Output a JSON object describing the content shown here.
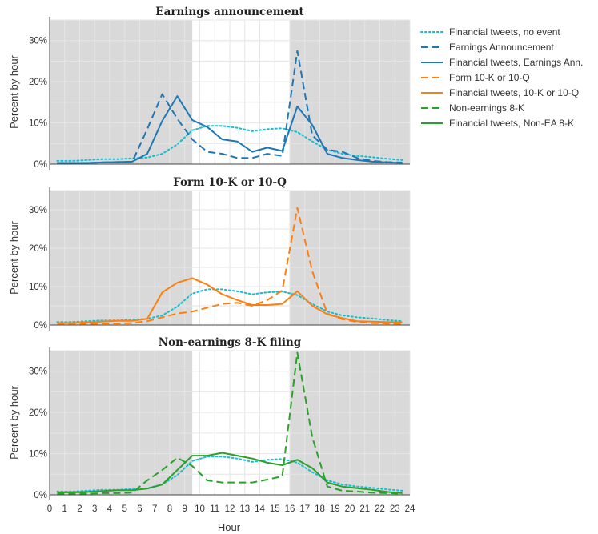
{
  "colors": {
    "teal": "#17becf",
    "blue": "#1f77b4",
    "orange": "#ff7f0e",
    "green": "#2ca02c",
    "shade": "#d9d9d9",
    "grid": "#e6e6e6"
  },
  "legend": [
    {
      "label": "Financial tweets, no event",
      "color": "#17becf",
      "style": "dotted"
    },
    {
      "label": "Earnings Announcement",
      "color": "#1f77b4",
      "style": "dashed"
    },
    {
      "label": "Financial tweets, Earnings Ann.",
      "color": "#1f77b4",
      "style": "solid"
    },
    {
      "label": "Form 10-K or 10-Q",
      "color": "#ff7f0e",
      "style": "dashed"
    },
    {
      "label": "Financial tweets, 10-K or 10-Q",
      "color": "#ff7f0e",
      "style": "solid"
    },
    {
      "label": "Non-earnings 8-K",
      "color": "#2ca02c",
      "style": "dashed"
    },
    {
      "label": "Financial tweets, Non-EA 8-K",
      "color": "#2ca02c",
      "style": "solid"
    }
  ],
  "chart_data": [
    {
      "type": "line",
      "title": "Earnings announcement",
      "ylabel": "Percent by hour",
      "xlabel": "",
      "xlim": [
        0,
        24
      ],
      "ylim": [
        0,
        35
      ],
      "yticks": [
        "0%",
        "10%",
        "20%",
        "30%"
      ],
      "closed_hours": [
        [
          0,
          9.5
        ],
        [
          16,
          24
        ]
      ],
      "grid": true,
      "series": [
        {
          "name": "Financial tweets, no event",
          "color": "#17becf",
          "style": "dotted",
          "x": [
            0.5,
            1.5,
            2.5,
            3.5,
            4.5,
            5.5,
            6.5,
            7.5,
            8.5,
            9.5,
            10.5,
            11.5,
            12.5,
            13.5,
            14.5,
            15.5,
            16.5,
            17.5,
            18.5,
            19.5,
            20.5,
            21.5,
            22.5,
            23.5
          ],
          "y": [
            0.8,
            0.8,
            1.0,
            1.2,
            1.2,
            1.4,
            1.6,
            2.5,
            4.8,
            8.2,
            9.3,
            9.3,
            8.8,
            8.0,
            8.5,
            8.7,
            7.8,
            5.5,
            3.5,
            2.5,
            2.0,
            1.7,
            1.3,
            1.0
          ]
        },
        {
          "name": "Earnings Announcement",
          "color": "#1f77b4",
          "style": "dashed",
          "x": [
            0.5,
            1.5,
            2.5,
            3.5,
            4.5,
            5.5,
            6.5,
            7.5,
            8.5,
            9.5,
            10.5,
            11.5,
            12.5,
            13.5,
            14.5,
            15.5,
            16.5,
            17.5,
            18.5,
            19.5,
            20.5,
            21.5,
            22.5,
            23.5
          ],
          "y": [
            0.3,
            0.3,
            0.3,
            0.4,
            0.5,
            0.5,
            8.5,
            17.0,
            11.0,
            6.0,
            3.0,
            2.5,
            1.5,
            1.5,
            2.5,
            2.0,
            27.5,
            7.0,
            3.5,
            3.0,
            1.5,
            0.8,
            0.5,
            0.4
          ]
        },
        {
          "name": "Financial tweets, Earnings Ann.",
          "color": "#1f77b4",
          "style": "solid",
          "x": [
            0.5,
            1.5,
            2.5,
            3.5,
            4.5,
            5.5,
            6.5,
            7.5,
            8.5,
            9.5,
            10.5,
            11.5,
            12.5,
            13.5,
            14.5,
            15.5,
            16.5,
            17.5,
            18.5,
            19.5,
            20.5,
            21.5,
            22.5,
            23.5
          ],
          "y": [
            0.3,
            0.3,
            0.3,
            0.4,
            0.5,
            0.6,
            2.5,
            10.5,
            16.5,
            10.7,
            9.0,
            6.0,
            5.5,
            3.0,
            4.0,
            3.2,
            14.0,
            9.5,
            2.5,
            1.5,
            1.0,
            0.6,
            0.4,
            0.3
          ]
        }
      ]
    },
    {
      "type": "line",
      "title": "Form 10-K or 10-Q",
      "ylabel": "Percent by hour",
      "xlabel": "",
      "xlim": [
        0,
        24
      ],
      "ylim": [
        0,
        35
      ],
      "yticks": [
        "0%",
        "10%",
        "20%",
        "30%"
      ],
      "closed_hours": [
        [
          0,
          9.5
        ],
        [
          16,
          24
        ]
      ],
      "grid": true,
      "series": [
        {
          "name": "Financial tweets, no event",
          "color": "#17becf",
          "style": "dotted",
          "x": [
            0.5,
            1.5,
            2.5,
            3.5,
            4.5,
            5.5,
            6.5,
            7.5,
            8.5,
            9.5,
            10.5,
            11.5,
            12.5,
            13.5,
            14.5,
            15.5,
            16.5,
            17.5,
            18.5,
            19.5,
            20.5,
            21.5,
            22.5,
            23.5
          ],
          "y": [
            0.8,
            0.8,
            1.0,
            1.2,
            1.2,
            1.4,
            1.6,
            2.5,
            4.8,
            8.2,
            9.3,
            9.3,
            8.8,
            8.0,
            8.5,
            8.7,
            7.8,
            5.5,
            3.5,
            2.5,
            2.0,
            1.7,
            1.3,
            1.0
          ]
        },
        {
          "name": "Form 10-K or 10-Q",
          "color": "#ff7f0e",
          "style": "dashed",
          "x": [
            0.5,
            1.5,
            2.5,
            3.5,
            4.5,
            5.5,
            6.5,
            7.5,
            8.5,
            9.5,
            10.5,
            11.5,
            12.5,
            13.5,
            14.5,
            15.5,
            16.5,
            17.5,
            18.5,
            19.5,
            20.5,
            21.5,
            22.5,
            23.5
          ],
          "y": [
            0.3,
            0.3,
            0.3,
            0.4,
            0.4,
            0.5,
            1.0,
            2.0,
            3.0,
            3.5,
            4.5,
            5.5,
            5.8,
            5.0,
            6.5,
            9.0,
            30.5,
            14.0,
            3.0,
            1.5,
            0.8,
            0.5,
            0.4,
            0.3
          ]
        },
        {
          "name": "Financial tweets, 10-K or 10-Q",
          "color": "#ff7f0e",
          "style": "solid",
          "x": [
            0.5,
            1.5,
            2.5,
            3.5,
            4.5,
            5.5,
            6.5,
            7.5,
            8.5,
            9.5,
            10.5,
            11.5,
            12.5,
            13.5,
            14.5,
            15.5,
            16.5,
            17.5,
            18.5,
            19.5,
            20.5,
            21.5,
            22.5,
            23.5
          ],
          "y": [
            0.5,
            0.5,
            0.7,
            0.9,
            1.1,
            1.1,
            1.6,
            8.5,
            11.0,
            12.2,
            10.5,
            8.0,
            6.5,
            5.2,
            5.2,
            5.5,
            8.8,
            5.0,
            2.8,
            1.8,
            1.0,
            0.9,
            0.8,
            0.7
          ]
        }
      ]
    },
    {
      "type": "line",
      "title": "Non-earnings 8-K filing",
      "ylabel": "Percent by hour",
      "xlabel": "Hour",
      "xlim": [
        0,
        24
      ],
      "ylim": [
        0,
        35
      ],
      "xticks": [
        "0",
        "1",
        "2",
        "3",
        "4",
        "5",
        "6",
        "7",
        "8",
        "9",
        "10",
        "11",
        "12",
        "13",
        "14",
        "15",
        "16",
        "17",
        "18",
        "19",
        "20",
        "21",
        "22",
        "23",
        "24"
      ],
      "yticks": [
        "0%",
        "10%",
        "20%",
        "30%"
      ],
      "closed_hours": [
        [
          0,
          9.5
        ],
        [
          16,
          24
        ]
      ],
      "grid": true,
      "series": [
        {
          "name": "Financial tweets, no event",
          "color": "#17becf",
          "style": "dotted",
          "x": [
            0.5,
            1.5,
            2.5,
            3.5,
            4.5,
            5.5,
            6.5,
            7.5,
            8.5,
            9.5,
            10.5,
            11.5,
            12.5,
            13.5,
            14.5,
            15.5,
            16.5,
            17.5,
            18.5,
            19.5,
            20.5,
            21.5,
            22.5,
            23.5
          ],
          "y": [
            0.8,
            0.8,
            1.0,
            1.2,
            1.2,
            1.4,
            1.6,
            2.5,
            4.8,
            8.2,
            9.3,
            9.3,
            8.8,
            8.0,
            8.5,
            8.7,
            7.8,
            5.5,
            3.5,
            2.5,
            2.0,
            1.7,
            1.3,
            1.0
          ]
        },
        {
          "name": "Non-earnings 8-K",
          "color": "#2ca02c",
          "style": "dashed",
          "x": [
            0.5,
            1.5,
            2.5,
            3.5,
            4.5,
            5.5,
            6.5,
            7.5,
            8.5,
            9.5,
            10.5,
            11.5,
            12.5,
            13.5,
            14.5,
            15.5,
            16.5,
            17.5,
            18.5,
            19.5,
            20.5,
            21.5,
            22.5,
            23.5
          ],
          "y": [
            0.3,
            0.3,
            0.3,
            0.4,
            0.4,
            0.5,
            3.5,
            6.0,
            9.0,
            7.0,
            3.5,
            3.0,
            3.0,
            3.0,
            3.7,
            4.5,
            34.5,
            14.0,
            2.0,
            1.0,
            0.8,
            0.5,
            0.4,
            0.3
          ]
        },
        {
          "name": "Financial tweets, Non-EA 8-K",
          "color": "#2ca02c",
          "style": "solid",
          "x": [
            0.5,
            1.5,
            2.5,
            3.5,
            4.5,
            5.5,
            6.5,
            7.5,
            8.5,
            9.5,
            10.5,
            11.5,
            12.5,
            13.5,
            14.5,
            15.5,
            16.5,
            17.5,
            18.5,
            19.5,
            20.5,
            21.5,
            22.5,
            23.5
          ],
          "y": [
            0.6,
            0.6,
            0.7,
            0.9,
            1.1,
            1.1,
            1.5,
            2.5,
            6.0,
            9.5,
            9.5,
            10.2,
            9.5,
            8.8,
            7.8,
            7.2,
            8.5,
            6.5,
            3.0,
            2.0,
            1.6,
            1.2,
            0.7,
            0.4
          ]
        }
      ]
    }
  ]
}
